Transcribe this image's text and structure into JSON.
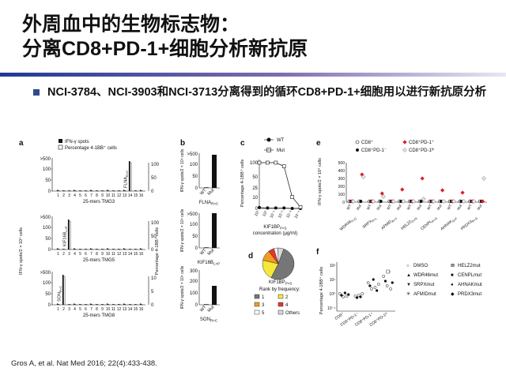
{
  "slide": {
    "title_line1": "外周血中的生物标志物：",
    "title_line2": "分离CD8+PD-1+细胞分析新抗原",
    "bullet": "NCI-3784、NCI-3903和NCI-3713分离得到的循环CD8+PD-1+细胞用以进行新抗原分析",
    "citation": "Gros A, et al. Nat Med 2016; 22(4):433-438."
  },
  "figure": {
    "panel_a": {
      "letter": "a",
      "legend": [
        "IFN-γ spots",
        "Percentage 4-1BB⁺ cells"
      ],
      "ylabel_left": "IFN-γ spots/2 × 10⁴ cells",
      "ylabel_right": "Percentage 4-1BB⁺ cells",
      "x_ticks": [
        "1",
        "2",
        "3",
        "4",
        "5",
        "6",
        "7",
        "8",
        "9",
        "10",
        "11",
        "12",
        "13",
        "14",
        "15",
        "16"
      ],
      "rows": [
        {
          "xlabel": "25-mers TMG3",
          "y_top": ">500",
          "y_ticks": [
            "100",
            "50",
            "0"
          ],
          "r_ticks": [
            "100",
            "50",
            "0"
          ],
          "label": "FLNA",
          "label_sub": "R>C",
          "peak_index": 13
        },
        {
          "xlabel": "25-mers TMG5",
          "y_top": ">500",
          "y_ticks": [
            "100",
            "50",
            "0"
          ],
          "r_ticks": [
            "100",
            "50",
            "0"
          ],
          "label": "KIF16B",
          "label_sub": "L>P",
          "peak_index": 2
        },
        {
          "xlabel": "25-mers TMG8",
          "y_top": ">500",
          "y_ticks": [
            "100",
            "50",
            "0"
          ],
          "r_ticks": [
            "10",
            "5",
            "0"
          ],
          "label": "SON",
          "label_sub": "R>C",
          "peak_index": 1
        }
      ]
    },
    "panel_b": {
      "letter": "b",
      "ylabel": "IFN-γ spots/2 × 10⁴ cells",
      "x": [
        "WT",
        "Mut"
      ],
      "rows": [
        {
          "y_top": ">500",
          "y_ticks": [
            "100",
            "50",
            "0"
          ],
          "label": "FLNA",
          "label_sub": "R>C"
        },
        {
          "y_top": ">500",
          "y_ticks": [
            "100",
            "50",
            "0"
          ],
          "label": "KIF16B",
          "label_sub": "L>P"
        },
        {
          "y_top": "300",
          "y_ticks": [
            "200",
            "100",
            "0"
          ],
          "label": "SON",
          "label_sub": "R>C"
        }
      ]
    },
    "panel_c": {
      "letter": "c",
      "legend": [
        "WT",
        "Mut"
      ],
      "ylabel": "Percentage 4-1BB⁺ cells",
      "y_ticks": [
        "100",
        "50",
        "25",
        "10",
        "0"
      ],
      "x_ticks": [
        "10¹",
        "10⁰",
        "10⁻¹",
        "10⁻²",
        "10⁻³",
        "10⁻⁴"
      ],
      "xlabel_line1": "KIF1BP",
      "xlabel_sub": "P>S",
      "xlabel_line2": "concentration (μg/ml)",
      "chart_data": {
        "type": "line",
        "x": [
          "10¹",
          "10⁰",
          "10⁻¹",
          "10⁻²",
          "10⁻³",
          "10⁻⁴"
        ],
        "series": [
          {
            "name": "WT",
            "values": [
              2,
              1,
              1,
              1,
              0,
              0
            ]
          },
          {
            "name": "Mut",
            "values": [
              100,
              100,
              100,
              92,
              25,
              3
            ]
          }
        ],
        "ylim": [
          0,
          100
        ]
      }
    },
    "panel_d": {
      "letter": "d",
      "label_line1": "KIF1BP",
      "label_sub": "P>S",
      "label_line2": "Rank by frequency:",
      "legend": [
        "1",
        "2",
        "3",
        "4",
        "5",
        "Others"
      ],
      "colors": [
        "#767676",
        "#f5e83a",
        "#f39a22",
        "#e7342a",
        "#ffffff",
        "#d8d8d8"
      ],
      "chart_data": {
        "type": "pie",
        "categories": [
          "1",
          "2",
          "3",
          "4",
          "5",
          "Others"
        ],
        "values": [
          52,
          21,
          11,
          6,
          4,
          6
        ]
      }
    },
    "panel_e": {
      "letter": "e",
      "legend": [
        "CD8⁺",
        "CD8⁺PD-1⁻",
        "CD8⁺PD-1⁺",
        "CD8⁺PD-1ʰⁱ"
      ],
      "ylabel": "IFN-γ spots/2 × 10⁴ cells",
      "y_ticks": [
        "500",
        "400",
        "300",
        "200",
        "100",
        "0"
      ],
      "groups": [
        {
          "name": "WDR46",
          "sub": "T>C"
        },
        {
          "name": "SRPX",
          "sub": "P>L"
        },
        {
          "name": "AFMID",
          "sub": "A>V"
        },
        {
          "name": "HELZ2",
          "sub": "D>N"
        },
        {
          "name": "CENPL",
          "sub": "P>S"
        },
        {
          "name": "AHNAK",
          "sub": "S>F"
        },
        {
          "name": "PRDX3",
          "sub": "P>S"
        }
      ],
      "group_x": [
        "WT",
        "Mut"
      ],
      "chart_data": {
        "type": "scatter",
        "categories": [
          "WDR46 WT",
          "WDR46 Mut",
          "SRPX WT",
          "SRPX Mut",
          "AFMID WT",
          "AFMID Mut",
          "HELZ2 WT",
          "HELZ2 Mut",
          "CENPL WT",
          "CENPL Mut",
          "AHNAK WT",
          "AHNAK Mut",
          "PRDX3 WT",
          "PRDX3 Mut"
        ],
        "series": [
          {
            "name": "CD8⁺",
            "values": [
              0,
              0,
              0,
              0,
              0,
              0,
              0,
              0,
              0,
              0,
              0,
              0,
              0,
              0
            ]
          },
          {
            "name": "CD8⁺PD-1⁻",
            "values": [
              0,
              0,
              0,
              0,
              0,
              0,
              0,
              0,
              0,
              0,
              0,
              0,
              0,
              0
            ]
          },
          {
            "name": "CD8⁺PD-1⁺",
            "values": [
              0,
              350,
              0,
              110,
              0,
              160,
              0,
              300,
              0,
              150,
              0,
              120,
              0,
              0
            ]
          },
          {
            "name": "CD8⁺PD-1ʰⁱ",
            "values": [
              0,
              320,
              0,
              70,
              0,
              0,
              0,
              40,
              0,
              0,
              0,
              0,
              0,
              300
            ]
          }
        ],
        "ylim": [
          0,
          500
        ]
      }
    },
    "panel_f": {
      "letter": "f",
      "ylabel": "Percentage 4-1BB⁺ cells",
      "y_ticks": [
        "10²",
        "10¹",
        "10⁰",
        "10⁻¹"
      ],
      "x": [
        "CD8⁺",
        "CD8⁺PD-1⁻",
        "CD8⁺PD-1⁺",
        "CD8⁺PD-1ʰⁱ"
      ],
      "legend": [
        "DMSO",
        "HELZ2mut",
        "WDR46mut",
        "CENPLmut",
        "SRPXmut",
        "AHNAKmut",
        "AFMIDmut",
        "PRDX3mut"
      ]
    }
  }
}
